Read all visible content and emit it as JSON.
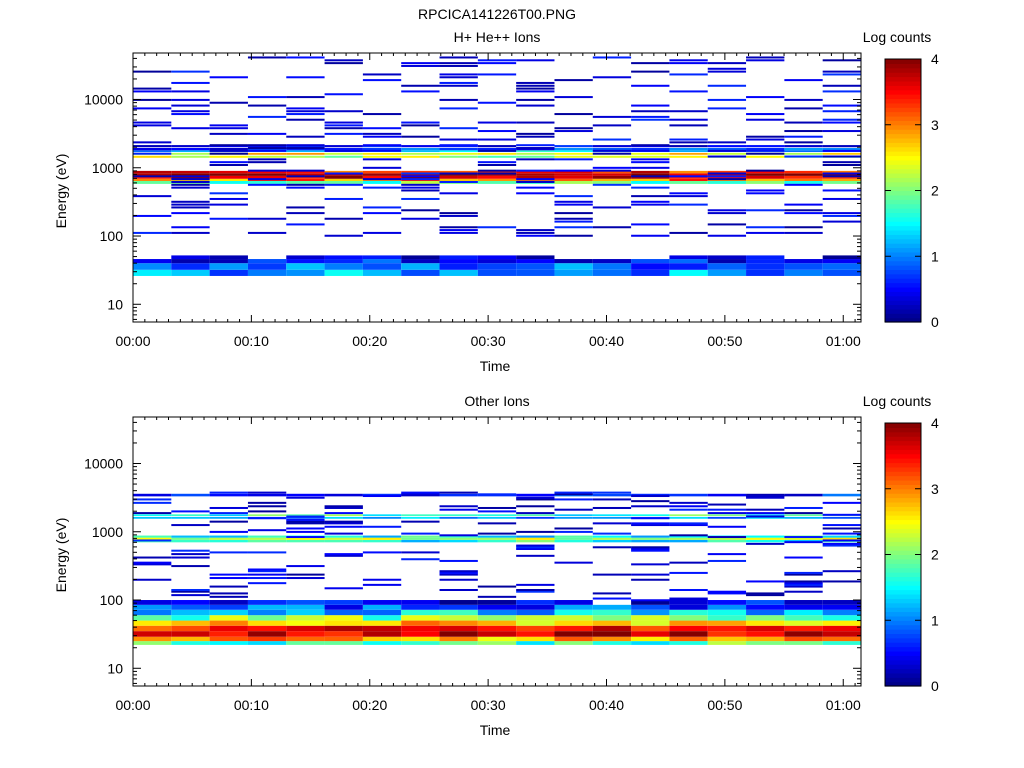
{
  "figure_title": "RPCICA141226T00.PNG",
  "chart_data": [
    {
      "type": "heatmap",
      "title": "H+ He++ Ions",
      "xlabel": "Time",
      "ylabel": "Energy (eV)",
      "xlim_minutes": [
        0,
        61.5
      ],
      "ylim": [
        5.5,
        48000
      ],
      "yscale": "log",
      "x_ticks": [
        "00:00",
        "00:10",
        "00:20",
        "00:30",
        "00:40",
        "00:50",
        "01:00"
      ],
      "y_ticks": [
        "10",
        "100",
        "1000",
        "10000"
      ],
      "colorbar": {
        "label": "Log counts",
        "range": [
          0,
          4
        ],
        "ticks": [
          "0",
          "1",
          "2",
          "3",
          "4"
        ]
      },
      "time_bins": 19,
      "bands": [
        {
          "emin": 580,
          "emax": 640,
          "value": 1.9
        },
        {
          "emin": 640,
          "emax": 690,
          "value": 3.0
        },
        {
          "emin": 690,
          "emax": 760,
          "value": 3.7
        },
        {
          "emin": 760,
          "emax": 830,
          "value": 3.9
        },
        {
          "emin": 830,
          "emax": 900,
          "value": 3.4
        },
        {
          "emin": 1400,
          "emax": 1500,
          "value": 2.2
        },
        {
          "emin": 1550,
          "emax": 1650,
          "value": 2.6
        },
        {
          "emin": 1700,
          "emax": 1800,
          "value": 1.3
        },
        {
          "emin": 1800,
          "emax": 1950,
          "value": 0.7
        },
        {
          "emin": 2000,
          "emax": 2150,
          "value": 0.3
        },
        {
          "emin": 26,
          "emax": 32,
          "value": 1.1
        },
        {
          "emin": 32,
          "emax": 40,
          "value": 0.9
        },
        {
          "emin": 40,
          "emax": 46,
          "value": 0.6
        },
        {
          "emin": 46,
          "emax": 52,
          "value": 0.2
        }
      ],
      "sparse_range": [
        100,
        45000
      ],
      "sparse_density": 0.22
    },
    {
      "type": "heatmap",
      "title": "Other Ions",
      "xlabel": "Time",
      "ylabel": "Energy (eV)",
      "xlim_minutes": [
        0,
        61.5
      ],
      "ylim": [
        5.5,
        48000
      ],
      "yscale": "log",
      "x_ticks": [
        "00:00",
        "00:10",
        "00:20",
        "00:30",
        "00:40",
        "00:50",
        "01:00"
      ],
      "y_ticks": [
        "10",
        "100",
        "1000",
        "10000"
      ],
      "colorbar": {
        "label": "Log counts",
        "range": [
          0,
          4
        ],
        "ticks": [
          "0",
          "1",
          "2",
          "3",
          "4"
        ]
      },
      "time_bins": 19,
      "bands": [
        {
          "emin": 22,
          "emax": 25,
          "value": 1.8
        },
        {
          "emin": 25,
          "emax": 29,
          "value": 2.9
        },
        {
          "emin": 29,
          "emax": 35,
          "value": 3.7
        },
        {
          "emin": 35,
          "emax": 42,
          "value": 3.4
        },
        {
          "emin": 42,
          "emax": 50,
          "value": 2.7
        },
        {
          "emin": 50,
          "emax": 60,
          "value": 2.0
        },
        {
          "emin": 60,
          "emax": 72,
          "value": 1.3
        },
        {
          "emin": 72,
          "emax": 85,
          "value": 0.8
        },
        {
          "emin": 85,
          "emax": 100,
          "value": 0.4
        },
        {
          "emin": 700,
          "emax": 760,
          "value": 1.6
        },
        {
          "emin": 760,
          "emax": 820,
          "value": 2.2
        },
        {
          "emin": 820,
          "emax": 880,
          "value": 1.5
        },
        {
          "emin": 1550,
          "emax": 1650,
          "value": 1.0
        },
        {
          "emin": 1700,
          "emax": 1800,
          "value": 1.7
        },
        {
          "emin": 3300,
          "emax": 3600,
          "value": 0.6
        }
      ],
      "sparse_range": [
        100,
        4000
      ],
      "sparse_density": 0.15
    }
  ]
}
